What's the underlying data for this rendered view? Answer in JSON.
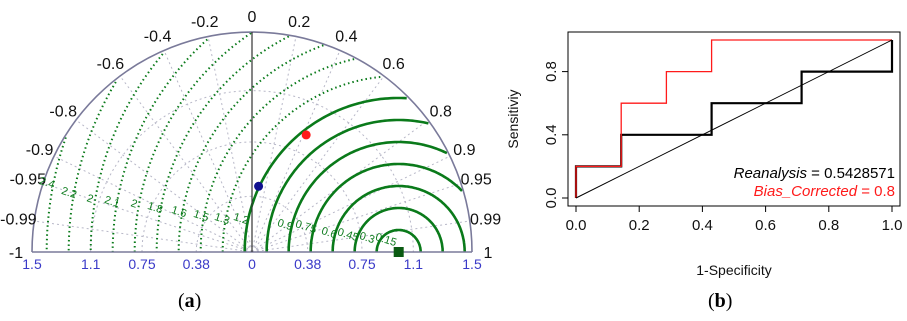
{
  "captions": {
    "a": {
      "open": "(",
      "letter": "a",
      "close": ")"
    },
    "b": {
      "open": "(",
      "letter": "b",
      "close": ")"
    }
  },
  "chart_data": [
    {
      "type": "scatter",
      "subtype": "taylor-diagram",
      "correlation_labels": [
        "-1",
        "-0.99",
        "-0.95",
        "-0.9",
        "-0.8",
        "-0.6",
        "-0.4",
        "-0.2",
        "0",
        "0.2",
        "0.4",
        "0.6",
        "0.8",
        "0.9",
        "0.95",
        "0.99",
        "1"
      ],
      "sd_axis_labels": [
        "1.5",
        "1.1",
        "0.75",
        "0.38",
        "0",
        "0.38",
        "0.75",
        "1.1",
        "1.5"
      ],
      "rms_labels": [
        "2.4",
        "2.2",
        "2",
        "2.1",
        "2",
        "1.8",
        "1.6",
        "1.5",
        "1.3",
        "1.2",
        "0.9",
        "0.75",
        "0.6",
        "0.45",
        "0.3",
        "0.15"
      ],
      "sd_max": 1.5,
      "points": [
        {
          "sd": 1.0,
          "corr": 1.0,
          "color": "#0a5a12",
          "marker": "square"
        },
        {
          "sd": 0.88,
          "corr": 0.42,
          "color": "#ff1a1a",
          "marker": "circle"
        },
        {
          "sd": 0.45,
          "corr": 0.1,
          "color": "#10108f",
          "marker": "circle"
        }
      ],
      "colors": {
        "frame": "#7a7a9a",
        "rms": "#0a7a1a",
        "corr_grid": "#b8b8c8",
        "ticks": "#3a3ac8"
      }
    },
    {
      "type": "line",
      "subtype": "roc-curve",
      "xlabel": "1-Specificity",
      "ylabel": "Sensitiviy",
      "xlim": [
        0,
        1
      ],
      "ylim": [
        0,
        1
      ],
      "x_ticks": [
        "0.0",
        "0.2",
        "0.4",
        "0.6",
        "0.8",
        "1.0"
      ],
      "y_ticks": [
        "0.0",
        "0.4",
        "0.8"
      ],
      "series": [
        {
          "name": "Reanalysis",
          "color": "#000000",
          "x": [
            0,
            0,
            0.143,
            0.143,
            0.429,
            0.429,
            0.714,
            0.714,
            1.0,
            1.0
          ],
          "y": [
            0,
            0.2,
            0.2,
            0.4,
            0.4,
            0.6,
            0.6,
            0.8,
            0.8,
            1.0
          ]
        },
        {
          "name": "Bias_Corrected",
          "color": "#ff1a1a",
          "x": [
            0,
            0,
            0.143,
            0.143,
            0.286,
            0.286,
            0.429,
            0.429,
            1.0
          ],
          "y": [
            0,
            0.2,
            0.2,
            0.6,
            0.6,
            0.8,
            0.8,
            1.0,
            1.0
          ]
        },
        {
          "name": "",
          "color": "#000000",
          "x": [
            0,
            1
          ],
          "y": [
            0,
            1
          ]
        }
      ],
      "annotations": [
        {
          "name": "Reanalysis",
          "operator": " = ",
          "value": "0.5428571",
          "color": "#000000"
        },
        {
          "name": "Bias_Corrected",
          "operator": " = ",
          "value": "0.8",
          "color": "#ff1a1a"
        }
      ]
    }
  ]
}
